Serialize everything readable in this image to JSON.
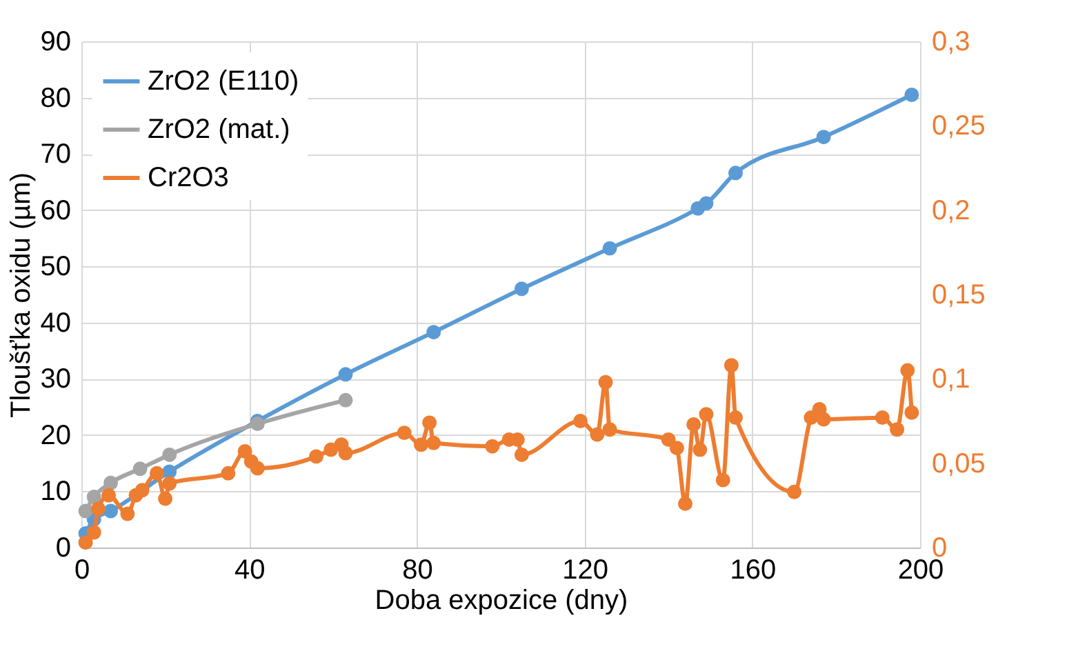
{
  "chart_data": {
    "type": "line",
    "xlabel": "Doba expozice (dny)",
    "ylabel": "Tloušťka oxidu (µm)",
    "xlim": [
      0,
      200
    ],
    "xticks": [
      0,
      40,
      80,
      120,
      160,
      200
    ],
    "ylim": [
      0,
      90
    ],
    "yticks": [
      0,
      10,
      20,
      30,
      40,
      50,
      60,
      70,
      80,
      90
    ],
    "y2lim": [
      0,
      0.3
    ],
    "y2ticks": [
      0,
      {
        "value": 0.05,
        "label": "0,05"
      },
      {
        "value": 0.1,
        "label": "0,1"
      },
      {
        "value": 0.15,
        "label": "0,15"
      },
      {
        "value": 0.2,
        "label": "0,2"
      },
      {
        "value": 0.25,
        "label": "0,25"
      },
      {
        "value": 0.3,
        "label": "0,3"
      }
    ],
    "grid": true,
    "legend": "top left",
    "marker": "circle",
    "line_style": "solid",
    "series": [
      {
        "name": "ZrO2 (E110)",
        "color": "#5b9bd5",
        "x": [
          1,
          3,
          7,
          21,
          42,
          63,
          84,
          105,
          126,
          147,
          149,
          156,
          177,
          198
        ],
        "values": [
          2.5,
          5,
          6.5,
          13.5,
          22.5,
          30.8,
          38.3,
          46,
          53.2,
          60.3,
          61.2,
          66.6,
          73,
          80.5
        ]
      },
      {
        "name": "ZrO2 (mat.)",
        "color": "#a5a5a5",
        "x": [
          1,
          3,
          7,
          14,
          21,
          42,
          63
        ],
        "values": [
          6.5,
          9,
          11.5,
          14,
          16.5,
          22,
          26.2
        ]
      },
      {
        "name": "Cr2O3",
        "color": "#ed7d31",
        "axis": "y2",
        "x": [
          1,
          3,
          4,
          6.5,
          11,
          13,
          14.5,
          18,
          20,
          21,
          35,
          39,
          40.5,
          42,
          56,
          59.5,
          62,
          63,
          77,
          81,
          83,
          84,
          98,
          102,
          104,
          105,
          119,
          123,
          125,
          126,
          140,
          142,
          144,
          146,
          147.5,
          149,
          153,
          155,
          156,
          170,
          174,
          176,
          177,
          191,
          194.5,
          197,
          198
        ],
        "values": [
          0.003,
          0.009,
          0.023,
          0.031,
          0.02,
          0.031,
          0.034,
          0.044,
          0.029,
          0.038,
          0.044,
          0.057,
          0.051,
          0.047,
          0.054,
          0.058,
          0.061,
          0.056,
          0.068,
          0.061,
          0.074,
          0.062,
          0.06,
          0.064,
          0.064,
          0.055,
          0.075,
          0.067,
          0.098,
          0.07,
          0.064,
          0.059,
          0.026,
          0.073,
          0.058,
          0.079,
          0.04,
          0.108,
          0.077,
          0.033,
          0.077,
          0.082,
          0.076,
          0.077,
          0.07,
          0.105,
          0.08
        ]
      }
    ]
  }
}
